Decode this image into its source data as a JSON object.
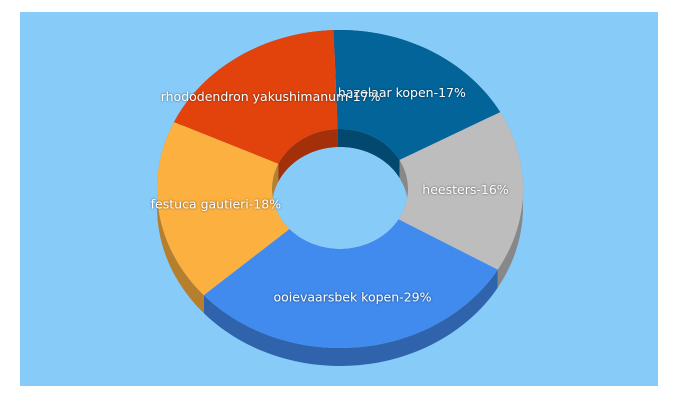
{
  "chart_data": {
    "type": "donut",
    "values": [
      17,
      16,
      29,
      18,
      17
    ],
    "value_labels": [
      "hazelaar kopen-17%",
      "heesters-16%",
      "ooievaarsbek kopen-29%",
      "festuca gautieri-18%",
      "rhododendron yakushimanum-17%"
    ],
    "colors": [
      "#03649a",
      "#bdbdbd",
      "#418bef",
      "#fbb040",
      "#e2430c"
    ],
    "background": "#87cbf9"
  }
}
